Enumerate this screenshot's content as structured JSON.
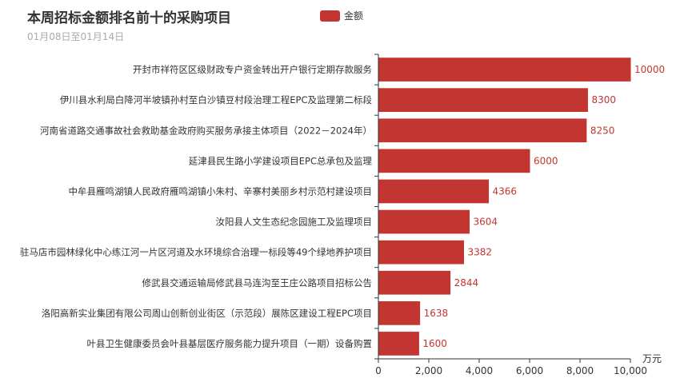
{
  "chart_data": {
    "type": "bar",
    "orientation": "horizontal",
    "title": "本周招标金额排名前十的采购项目",
    "subtitle": "01月08日至01月14日",
    "legend": [
      "金额"
    ],
    "legend_position": "top",
    "unit": "万元",
    "color": "#c23531",
    "categories": [
      "开封市祥符区区级财政专户资金转出开户银行定期存款服务",
      "伊川县水利局白降河半坡镇孙村至白沙镇豆村段治理工程EPC及监理第二标段",
      "河南省道路交通事故社会救助基金政府购买服务承接主体项目（2022－2024年）",
      "延津县民生路小学建设项目EPC总承包及监理",
      "中牟县雁鸣湖镇人民政府雁鸣湖镇小朱村、辛寨村美丽乡村示范村建设项目",
      "汝阳县人文生态纪念园施工及监理项目",
      "驻马店市园林绿化中心练江河一片区河道及水环境综合治理一标段等49个绿地养护项目",
      "修武县交通运输局修武县马连沟至王庄公路项目招标公告",
      "洛阳高新实业集团有限公司周山创新创业街区（示范段）展陈区建设工程EPC项目",
      "叶县卫生健康委员会叶县基层医疗服务能力提升项目（一期）设备购置"
    ],
    "values": [
      10000,
      8300,
      8250,
      6000,
      4366,
      3604,
      3382,
      2844,
      1638,
      1600
    ],
    "xlim": [
      0,
      10000
    ],
    "xticks": [
      0,
      2000,
      4000,
      6000,
      8000,
      10000
    ],
    "xtick_labels": [
      "0",
      "2,000",
      "4,000",
      "6,000",
      "8,000",
      "10,000"
    ],
    "grid": false
  }
}
